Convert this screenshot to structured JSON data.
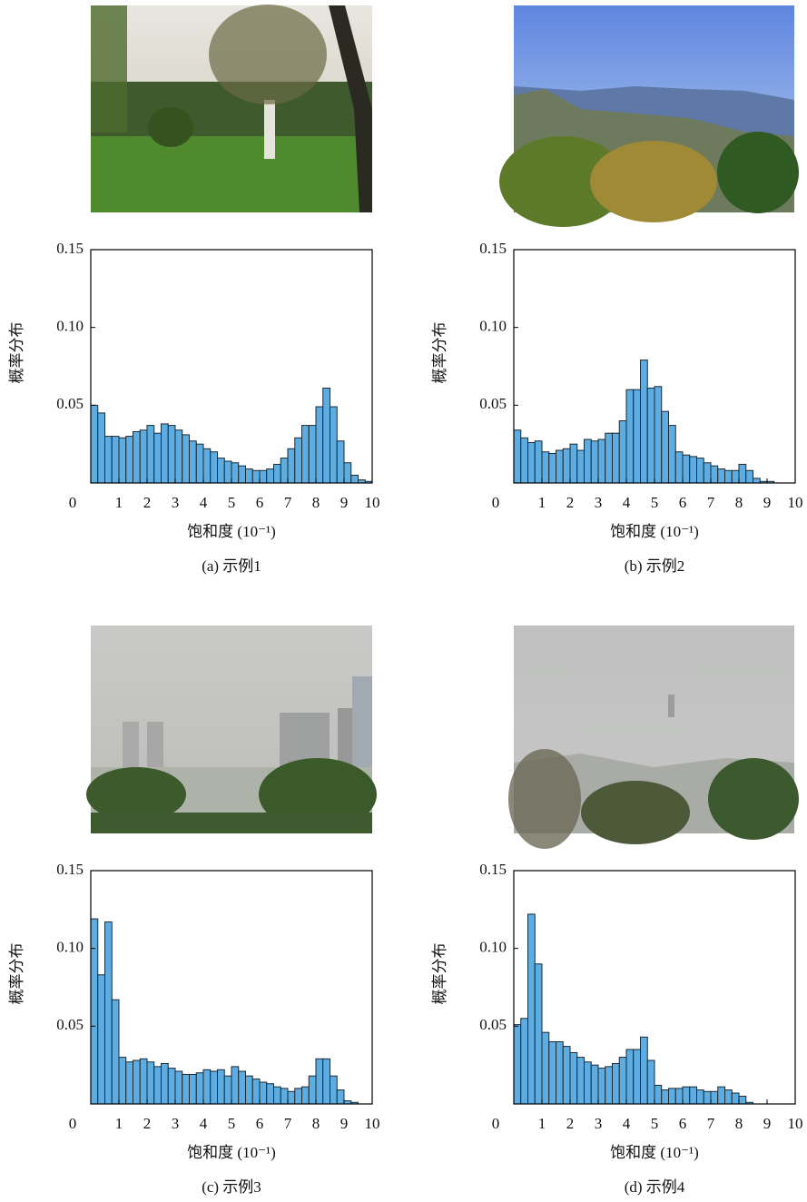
{
  "chart_data": [
    {
      "type": "histogram",
      "caption": "(a) 示例1",
      "x_label": "饱和度 (10⁻¹)",
      "y_label": "概率分布",
      "bins": [
        0,
        0.25,
        0.5,
        0.75,
        1,
        1.25,
        1.5,
        1.75,
        2,
        2.25,
        2.5,
        2.75,
        3,
        3.25,
        3.5,
        3.75,
        4,
        4.25,
        4.5,
        4.75,
        5,
        5.25,
        5.5,
        5.75,
        6,
        6.25,
        6.5,
        6.75,
        7,
        7.25,
        7.5,
        7.75,
        8,
        8.25,
        8.5,
        8.75,
        9,
        9.25,
        9.5,
        9.75,
        10
      ],
      "values": [
        0.05,
        0.045,
        0.03,
        0.03,
        0.029,
        0.03,
        0.033,
        0.034,
        0.037,
        0.032,
        0.038,
        0.037,
        0.034,
        0.031,
        0.027,
        0.025,
        0.022,
        0.02,
        0.016,
        0.014,
        0.013,
        0.011,
        0.009,
        0.008,
        0.008,
        0.009,
        0.012,
        0.016,
        0.022,
        0.029,
        0.037,
        0.037,
        0.049,
        0.061,
        0.049,
        0.027,
        0.013,
        0.005,
        0.002,
        0.001
      ],
      "color": "#5dade2",
      "xlim": [
        0,
        10
      ],
      "xticks": [
        0,
        1,
        2,
        3,
        4,
        5,
        6,
        7,
        8,
        9,
        10
      ],
      "ylim": [
        0,
        0.15
      ],
      "yticks": [
        0.05,
        {
          "value": 0.1,
          "label": "0.10"
        },
        0.15
      ]
    },
    {
      "type": "histogram",
      "caption": "(b) 示例2",
      "x_label": "饱和度 (10⁻¹)",
      "y_label": "概率分布",
      "bins": [
        0,
        0.25,
        0.5,
        0.75,
        1,
        1.25,
        1.5,
        1.75,
        2,
        2.25,
        2.5,
        2.75,
        3,
        3.25,
        3.5,
        3.75,
        4,
        4.25,
        4.5,
        4.75,
        5,
        5.25,
        5.5,
        5.75,
        6,
        6.25,
        6.5,
        6.75,
        7,
        7.25,
        7.5,
        7.75,
        8,
        8.25,
        8.5,
        8.75,
        9,
        9.25,
        9.5,
        9.75,
        10
      ],
      "values": [
        0.034,
        0.029,
        0.026,
        0.027,
        0.02,
        0.019,
        0.021,
        0.022,
        0.025,
        0.021,
        0.028,
        0.027,
        0.028,
        0.032,
        0.032,
        0.04,
        0.06,
        0.06,
        0.079,
        0.061,
        0.062,
        0.046,
        0.037,
        0.02,
        0.018,
        0.017,
        0.016,
        0.013,
        0.011,
        0.009,
        0.008,
        0.008,
        0.012,
        0.008,
        0.003,
        0.001,
        0.001,
        0,
        0,
        0
      ],
      "color": "#5dade2",
      "xlim": [
        0,
        10
      ],
      "xticks": [
        0,
        1,
        2,
        3,
        4,
        5,
        6,
        7,
        8,
        9,
        10
      ],
      "ylim": [
        0,
        0.15
      ],
      "yticks": [
        0.05,
        {
          "value": 0.1,
          "label": "0.10"
        },
        0.15
      ]
    },
    {
      "type": "histogram",
      "caption": "(c) 示例3",
      "x_label": "饱和度 (10⁻¹)",
      "y_label": "概率分布",
      "bins": [
        0,
        0.25,
        0.5,
        0.75,
        1,
        1.25,
        1.5,
        1.75,
        2,
        2.25,
        2.5,
        2.75,
        3,
        3.25,
        3.5,
        3.75,
        4,
        4.25,
        4.5,
        4.75,
        5,
        5.25,
        5.5,
        5.75,
        6,
        6.25,
        6.5,
        6.75,
        7,
        7.25,
        7.5,
        7.75,
        8,
        8.25,
        8.5,
        8.75,
        9,
        9.25,
        9.5,
        9.75,
        10
      ],
      "values": [
        0.119,
        0.083,
        0.117,
        0.067,
        0.03,
        0.027,
        0.028,
        0.029,
        0.027,
        0.024,
        0.026,
        0.023,
        0.021,
        0.019,
        0.019,
        0.02,
        0.022,
        0.021,
        0.022,
        0.018,
        0.024,
        0.021,
        0.018,
        0.016,
        0.014,
        0.013,
        0.011,
        0.01,
        0.008,
        0.01,
        0.011,
        0.018,
        0.029,
        0.029,
        0.018,
        0.009,
        0.002,
        0.001,
        0,
        0
      ],
      "color": "#5dade2",
      "xlim": [
        0,
        10
      ],
      "xticks": [
        0,
        1,
        2,
        3,
        4,
        5,
        6,
        7,
        8,
        9,
        10
      ],
      "ylim": [
        0,
        0.15
      ],
      "yticks": [
        0.05,
        {
          "value": 0.1,
          "label": "0.10"
        },
        0.15
      ]
    },
    {
      "type": "histogram",
      "caption": "(d) 示例4",
      "x_label": "饱和度 (10⁻¹)",
      "y_label": "概率分布",
      "bins": [
        0,
        0.25,
        0.5,
        0.75,
        1,
        1.25,
        1.5,
        1.75,
        2,
        2.25,
        2.5,
        2.75,
        3,
        3.25,
        3.5,
        3.75,
        4,
        4.25,
        4.5,
        4.75,
        5,
        5.25,
        5.5,
        5.75,
        6,
        6.25,
        6.5,
        6.75,
        7,
        7.25,
        7.5,
        7.75,
        8,
        8.25,
        8.5,
        8.75,
        9,
        9.25,
        9.5,
        9.75,
        10
      ],
      "values": [
        0.051,
        0.055,
        0.122,
        0.09,
        0.046,
        0.04,
        0.04,
        0.037,
        0.033,
        0.03,
        0.027,
        0.025,
        0.023,
        0.024,
        0.026,
        0.03,
        0.035,
        0.035,
        0.043,
        0.028,
        0.012,
        0.009,
        0.01,
        0.01,
        0.011,
        0.011,
        0.009,
        0.008,
        0.008,
        0.011,
        0.009,
        0.007,
        0.005,
        0.001,
        0,
        0,
        0,
        0,
        0,
        0
      ],
      "color": "#5dade2",
      "xlim": [
        0,
        10
      ],
      "xticks": [
        0,
        1,
        2,
        3,
        4,
        5,
        6,
        7,
        8,
        9,
        10
      ],
      "ylim": [
        0,
        0.15
      ],
      "yticks": [
        0.05,
        {
          "value": 0.1,
          "label": "0.10"
        },
        0.15
      ]
    }
  ]
}
